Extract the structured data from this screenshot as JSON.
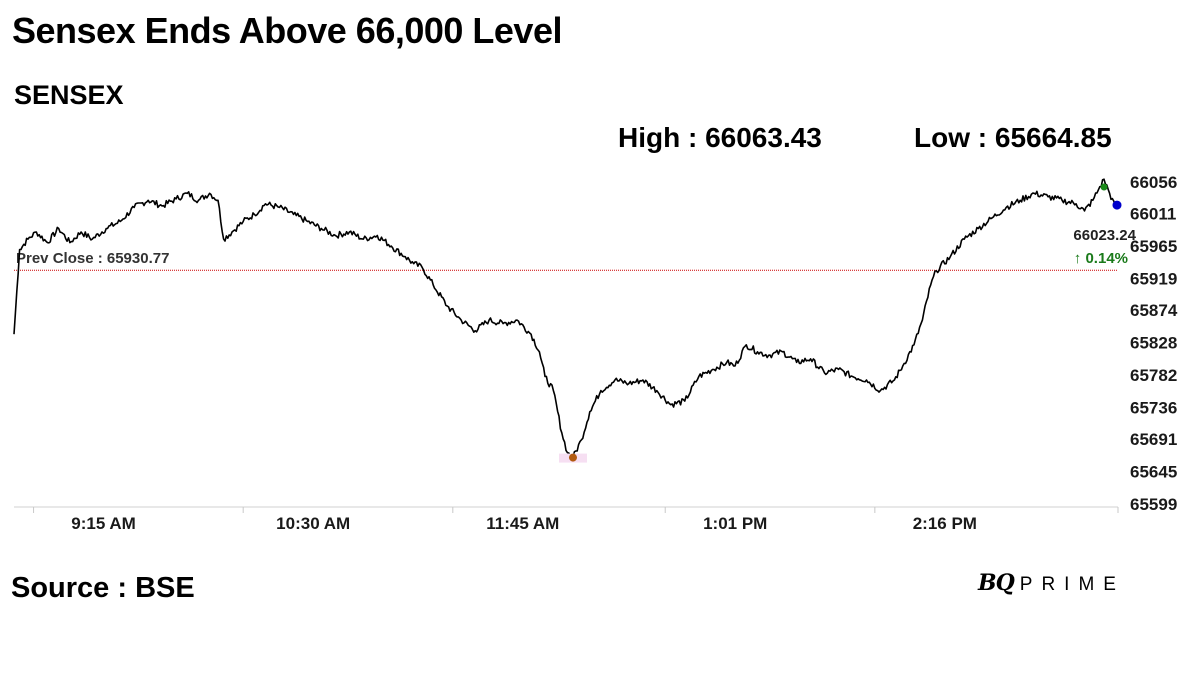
{
  "title": "Sensex Ends Above 66,000 Level",
  "subtitle": "SENSEX",
  "high_text": "High : 66063.43",
  "low_text": "Low : 65664.85",
  "source": "Source : BSE",
  "logo": {
    "bq": "BQ",
    "prime": "PRIME"
  },
  "colors": {
    "line": "#000000",
    "prev_close": "#cc0000",
    "high_marker": "#1a8a1a",
    "low_marker": "#b25a10",
    "last_marker": "#0000cc",
    "change": "#1a7a1a"
  },
  "chart_data": {
    "type": "line",
    "series": [
      {
        "values": [
          [
            0,
            65840
          ],
          [
            2,
            65960
          ],
          [
            5,
            65975
          ],
          [
            8,
            65985
          ],
          [
            12,
            65970
          ],
          [
            16,
            65990
          ],
          [
            20,
            65970
          ],
          [
            24,
            65985
          ],
          [
            28,
            65975
          ],
          [
            33,
            65990
          ],
          [
            38,
            66000
          ],
          [
            43,
            66020
          ],
          [
            48,
            66030
          ],
          [
            53,
            66022
          ],
          [
            58,
            66032
          ],
          [
            62,
            66040
          ],
          [
            66,
            66030
          ],
          [
            70,
            66040
          ],
          [
            73,
            66030
          ],
          [
            75,
            65975
          ],
          [
            78,
            65985
          ],
          [
            82,
            66000
          ],
          [
            86,
            66010
          ],
          [
            90,
            66025
          ],
          [
            95,
            66020
          ],
          [
            100,
            66010
          ],
          [
            105,
            66000
          ],
          [
            110,
            65990
          ],
          [
            115,
            65980
          ],
          [
            120,
            65985
          ],
          [
            125,
            65975
          ],
          [
            130,
            65980
          ],
          [
            135,
            65965
          ],
          [
            140,
            65950
          ],
          [
            143,
            65940
          ],
          [
            146,
            65935
          ],
          [
            150,
            65910
          ],
          [
            155,
            65880
          ],
          [
            160,
            65860
          ],
          [
            165,
            65845
          ],
          [
            170,
            65860
          ],
          [
            175,
            65855
          ],
          [
            180,
            65860
          ],
          [
            185,
            65840
          ],
          [
            188,
            65815
          ],
          [
            190,
            65780
          ],
          [
            193,
            65760
          ],
          [
            196,
            65700
          ],
          [
            198,
            65672
          ],
          [
            200,
            65665
          ],
          [
            203,
            65690
          ],
          [
            206,
            65730
          ],
          [
            210,
            65760
          ],
          [
            215,
            65775
          ],
          [
            220,
            65770
          ],
          [
            225,
            65775
          ],
          [
            230,
            65760
          ],
          [
            235,
            65740
          ],
          [
            240,
            65745
          ],
          [
            245,
            65780
          ],
          [
            250,
            65790
          ],
          [
            255,
            65800
          ],
          [
            258,
            65795
          ],
          [
            262,
            65825
          ],
          [
            266,
            65815
          ],
          [
            270,
            65810
          ],
          [
            275,
            65815
          ],
          [
            280,
            65800
          ],
          [
            285,
            65805
          ],
          [
            290,
            65785
          ],
          [
            295,
            65790
          ],
          [
            300,
            65780
          ],
          [
            305,
            65775
          ],
          [
            310,
            65760
          ],
          [
            315,
            65775
          ],
          [
            318,
            65795
          ],
          [
            322,
            65825
          ],
          [
            325,
            65860
          ],
          [
            328,
            65910
          ],
          [
            330,
            65930
          ],
          [
            335,
            65950
          ],
          [
            340,
            65975
          ],
          [
            345,
            65990
          ],
          [
            350,
            66005
          ],
          [
            355,
            66020
          ],
          [
            360,
            66030
          ],
          [
            365,
            66040
          ],
          [
            370,
            66035
          ],
          [
            375,
            66030
          ],
          [
            380,
            66025
          ],
          [
            383,
            66015
          ],
          [
            386,
            66030
          ],
          [
            388,
            66045
          ],
          [
            390,
            66060
          ],
          [
            392,
            66040
          ],
          [
            394,
            66020
          ]
        ]
      }
    ],
    "x_ticks": [
      {
        "label": "9:15 AM",
        "x": 7
      },
      {
        "label": "10:30 AM",
        "x": 82
      },
      {
        "label": "11:45 AM",
        "x": 157
      },
      {
        "label": "1:01 PM",
        "x": 233
      },
      {
        "label": "2:16 PM",
        "x": 308
      }
    ],
    "y_ticks": [
      66056,
      66011,
      65965,
      65919,
      65874,
      65828,
      65782,
      65736,
      65691,
      65645,
      65599
    ],
    "xlim": [
      0,
      395
    ],
    "ylim": [
      65599,
      66056
    ],
    "prev_close": 65930.77,
    "prev_close_label": "Prev Close : 65930.77",
    "high": {
      "x": 390,
      "y": 66063.43
    },
    "low": {
      "x": 200,
      "y": 65664.85
    },
    "last": {
      "x": 394,
      "y": 66023.24
    },
    "last_label": "66023.24",
    "change_label": "↑ 0.14%"
  }
}
